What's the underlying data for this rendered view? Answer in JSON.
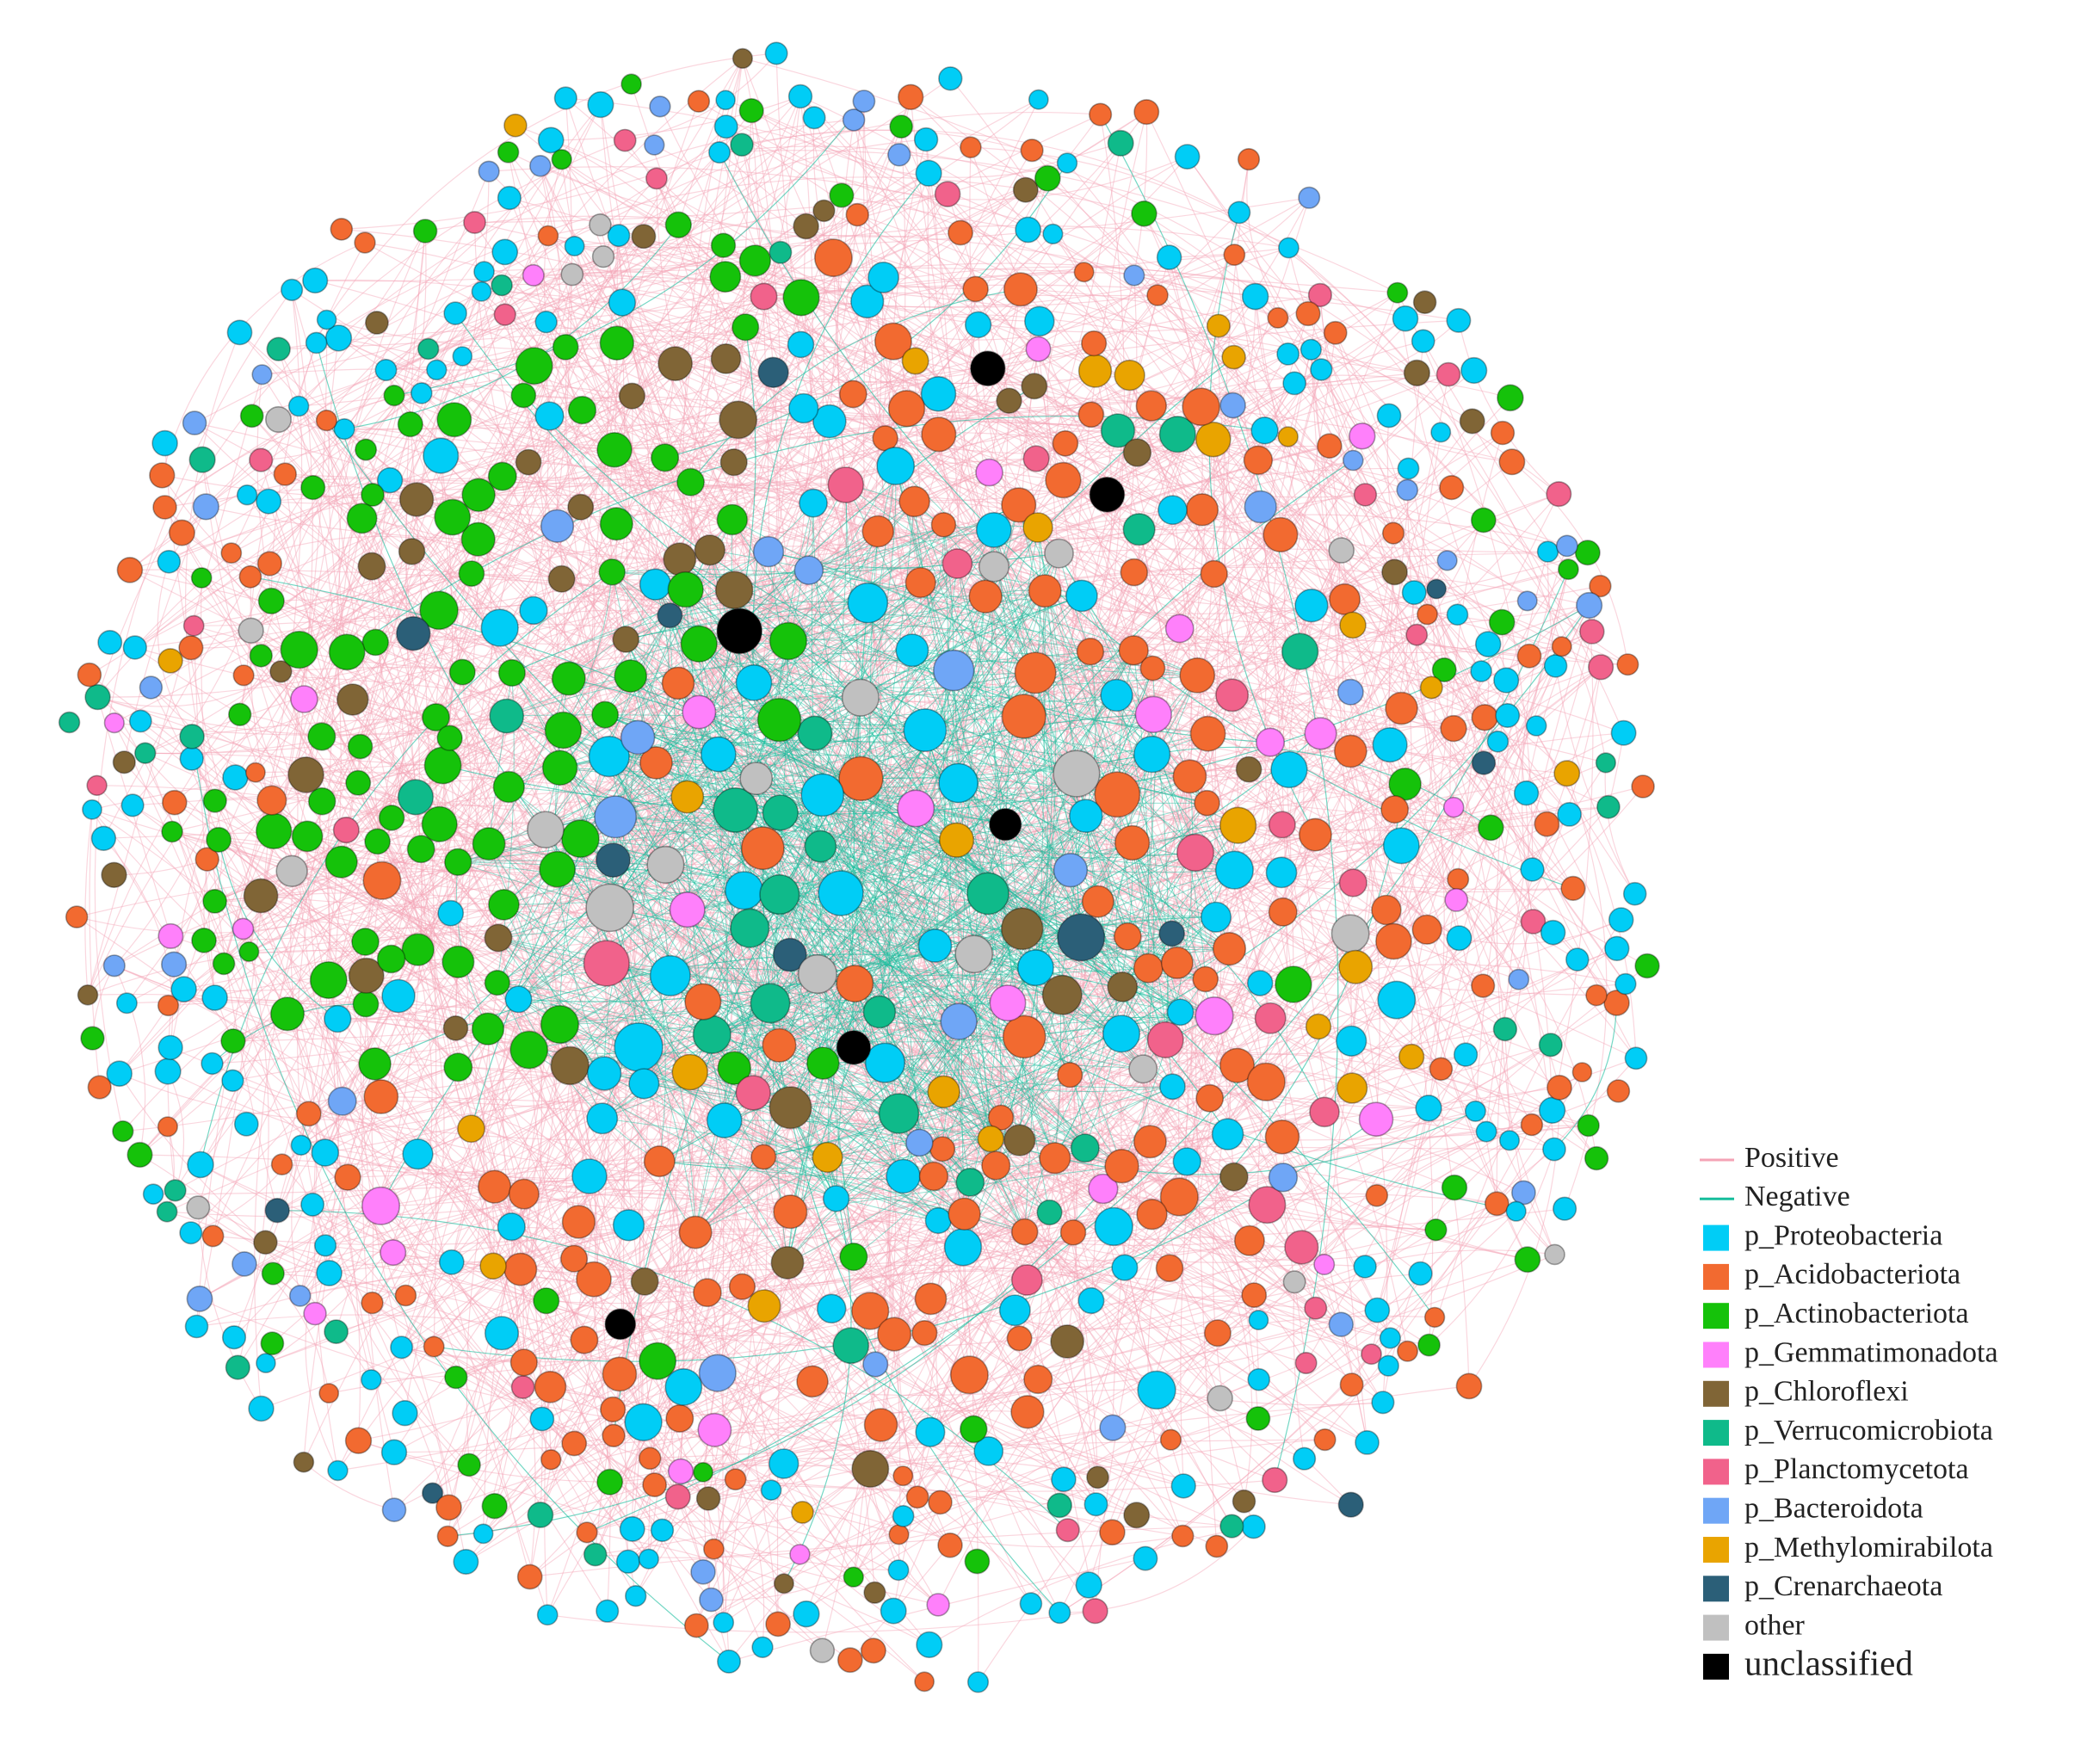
{
  "legend": {
    "edges": [
      {
        "label": "Positive",
        "color": "#f4a3b6"
      },
      {
        "label": "Negative",
        "color": "#16bd9c"
      }
    ],
    "nodes": [
      {
        "label": "p_Proteobacteria",
        "color": "#00cdf6"
      },
      {
        "label": "p_Acidobacteriota",
        "color": "#f26a30"
      },
      {
        "label": "p_Actinobacteriota",
        "color": "#15c20a"
      },
      {
        "label": "p_Gemmatimonadota",
        "color": "#ff80fb"
      },
      {
        "label": "p_Chloroflexi",
        "color": "#806536"
      },
      {
        "label": "p_Verrucomicrobiota",
        "color": "#0fba8a"
      },
      {
        "label": "p_Planctomycetota",
        "color": "#f1628b"
      },
      {
        "label": "p_Bacteroidota",
        "color": "#6fa6f6"
      },
      {
        "label": "p_Methylomirabilota",
        "color": "#e9a400"
      },
      {
        "label": "p_Crenarchaeota",
        "color": "#2b5f78"
      },
      {
        "label": "other",
        "color": "#c0c0c0"
      },
      {
        "label": "unclassified",
        "color": "#000000"
      }
    ]
  }
}
